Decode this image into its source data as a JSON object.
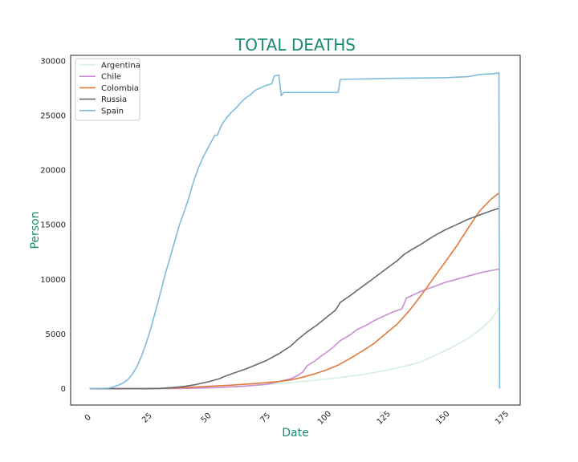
{
  "chart_data": {
    "type": "line",
    "title": "TOTAL DEATHS",
    "xlabel": "Date",
    "ylabel": "Person",
    "xlim": [
      -8,
      182
    ],
    "ylim": [
      -1500,
      30500
    ],
    "xticks": [
      0,
      25,
      50,
      75,
      100,
      125,
      150,
      175
    ],
    "yticks": [
      0,
      5000,
      10000,
      15000,
      20000,
      25000,
      30000
    ],
    "grid": false,
    "legend": "top-left",
    "series": [
      {
        "name": "Argentina",
        "color": "#d4efe0",
        "points": [
          [
            0,
            0
          ],
          [
            20,
            0
          ],
          [
            35,
            5
          ],
          [
            45,
            40
          ],
          [
            55,
            110
          ],
          [
            65,
            230
          ],
          [
            75,
            380
          ],
          [
            85,
            550
          ],
          [
            95,
            760
          ],
          [
            105,
            1000
          ],
          [
            115,
            1280
          ],
          [
            125,
            1650
          ],
          [
            135,
            2150
          ],
          [
            140,
            2450
          ],
          [
            145,
            2950
          ],
          [
            150,
            3450
          ],
          [
            155,
            4000
          ],
          [
            160,
            4600
          ],
          [
            165,
            5400
          ],
          [
            170,
            6400
          ],
          [
            173,
            7400
          ]
        ]
      },
      {
        "name": "Chile",
        "color": "#c88fd0",
        "points": [
          [
            0,
            0
          ],
          [
            20,
            0
          ],
          [
            35,
            5
          ],
          [
            45,
            40
          ],
          [
            55,
            110
          ],
          [
            65,
            220
          ],
          [
            75,
            400
          ],
          [
            80,
            650
          ],
          [
            85,
            900
          ],
          [
            88,
            1200
          ],
          [
            90,
            1500
          ],
          [
            92,
            2100
          ],
          [
            95,
            2500
          ],
          [
            98,
            3000
          ],
          [
            100,
            3300
          ],
          [
            103,
            3800
          ],
          [
            106,
            4400
          ],
          [
            110,
            4900
          ],
          [
            113,
            5400
          ],
          [
            117,
            5800
          ],
          [
            120,
            6200
          ],
          [
            124,
            6600
          ],
          [
            128,
            7000
          ],
          [
            132,
            7300
          ],
          [
            134,
            8300
          ],
          [
            137,
            8600
          ],
          [
            140,
            8900
          ],
          [
            145,
            9300
          ],
          [
            150,
            9700
          ],
          [
            155,
            10000
          ],
          [
            160,
            10300
          ],
          [
            165,
            10600
          ],
          [
            173,
            10950
          ]
        ]
      },
      {
        "name": "Colombia",
        "color": "#e07a3a",
        "points": [
          [
            0,
            0
          ],
          [
            20,
            0
          ],
          [
            30,
            20
          ],
          [
            40,
            100
          ],
          [
            50,
            210
          ],
          [
            60,
            320
          ],
          [
            70,
            470
          ],
          [
            80,
            650
          ],
          [
            85,
            800
          ],
          [
            90,
            1050
          ],
          [
            95,
            1350
          ],
          [
            100,
            1700
          ],
          [
            105,
            2150
          ],
          [
            110,
            2750
          ],
          [
            115,
            3400
          ],
          [
            120,
            4100
          ],
          [
            125,
            5000
          ],
          [
            130,
            5900
          ],
          [
            135,
            7100
          ],
          [
            140,
            8500
          ],
          [
            145,
            10000
          ],
          [
            150,
            11500
          ],
          [
            155,
            13000
          ],
          [
            160,
            14700
          ],
          [
            165,
            16300
          ],
          [
            170,
            17400
          ],
          [
            173,
            17900
          ]
        ]
      },
      {
        "name": "Russia",
        "color": "#626a74",
        "points": [
          [
            0,
            0
          ],
          [
            25,
            0
          ],
          [
            30,
            30
          ],
          [
            35,
            100
          ],
          [
            40,
            200
          ],
          [
            45,
            380
          ],
          [
            50,
            620
          ],
          [
            55,
            920
          ],
          [
            58,
            1200
          ],
          [
            62,
            1500
          ],
          [
            66,
            1800
          ],
          [
            70,
            2150
          ],
          [
            75,
            2600
          ],
          [
            80,
            3200
          ],
          [
            85,
            3900
          ],
          [
            88,
            4500
          ],
          [
            92,
            5200
          ],
          [
            96,
            5800
          ],
          [
            100,
            6500
          ],
          [
            104,
            7200
          ],
          [
            106,
            7900
          ],
          [
            110,
            8500
          ],
          [
            115,
            9300
          ],
          [
            120,
            10100
          ],
          [
            125,
            10900
          ],
          [
            130,
            11700
          ],
          [
            133,
            12300
          ],
          [
            136,
            12700
          ],
          [
            140,
            13200
          ],
          [
            145,
            13900
          ],
          [
            150,
            14500
          ],
          [
            155,
            15000
          ],
          [
            160,
            15500
          ],
          [
            165,
            15900
          ],
          [
            170,
            16300
          ],
          [
            173,
            16500
          ]
        ]
      },
      {
        "name": "Spain",
        "color": "#7fbcdc",
        "points": [
          [
            0,
            0
          ],
          [
            8,
            50
          ],
          [
            10,
            150
          ],
          [
            12,
            300
          ],
          [
            14,
            500
          ],
          [
            16,
            800
          ],
          [
            18,
            1300
          ],
          [
            20,
            2000
          ],
          [
            22,
            3000
          ],
          [
            24,
            4200
          ],
          [
            26,
            5600
          ],
          [
            28,
            7200
          ],
          [
            30,
            8800
          ],
          [
            32,
            10500
          ],
          [
            34,
            12000
          ],
          [
            36,
            13500
          ],
          [
            38,
            15000
          ],
          [
            40,
            16200
          ],
          [
            42,
            17500
          ],
          [
            44,
            19000
          ],
          [
            46,
            20200
          ],
          [
            48,
            21200
          ],
          [
            50,
            22000
          ],
          [
            52,
            22800
          ],
          [
            53,
            23200
          ],
          [
            54,
            23200
          ],
          [
            56,
            24200
          ],
          [
            58,
            24800
          ],
          [
            60,
            25300
          ],
          [
            62,
            25700
          ],
          [
            64,
            26200
          ],
          [
            66,
            26600
          ],
          [
            68,
            26900
          ],
          [
            70,
            27300
          ],
          [
            72,
            27500
          ],
          [
            74,
            27700
          ],
          [
            77,
            27900
          ],
          [
            78,
            28600
          ],
          [
            80,
            28700
          ],
          [
            81,
            26800
          ],
          [
            82,
            27100
          ],
          [
            90,
            27100
          ],
          [
            105,
            27100
          ],
          [
            106,
            28300
          ],
          [
            130,
            28400
          ],
          [
            150,
            28450
          ],
          [
            160,
            28550
          ],
          [
            165,
            28750
          ],
          [
            168,
            28800
          ],
          [
            170,
            28800
          ],
          [
            173,
            28900
          ],
          [
            173.3,
            0
          ]
        ]
      }
    ]
  }
}
